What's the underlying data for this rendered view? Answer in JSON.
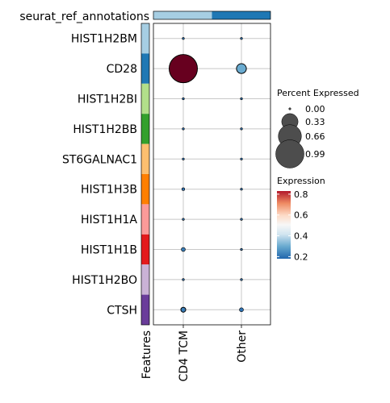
{
  "chart_data": {
    "type": "dotplot",
    "annotation_title": "seurat_ref_annotations",
    "x_axis_title": "Features",
    "groups": [
      "CD4 TCM",
      "Other"
    ],
    "group_colors": [
      "#a6cee3",
      "#1f78b4"
    ],
    "features": [
      "HIST1H2BM",
      "CD28",
      "HIST1H2BI",
      "HIST1H2BB",
      "ST6GALNAC1",
      "HIST1H3B",
      "HIST1H1A",
      "HIST1H1B",
      "HIST1H2BO",
      "CTSH"
    ],
    "feature_colors": [
      "#a6cee3",
      "#1f78b4",
      "#b2df8a",
      "#33a02c",
      "#fdbf6f",
      "#ff7f00",
      "#fb9a99",
      "#e31a1c",
      "#cab2d6",
      "#6a3d9a"
    ],
    "points": [
      {
        "feature": "HIST1H2BM",
        "group": "CD4 TCM",
        "pct": 0.0,
        "expr": 0.2
      },
      {
        "feature": "HIST1H2BM",
        "group": "Other",
        "pct": 0.0,
        "expr": 0.2
      },
      {
        "feature": "CD28",
        "group": "CD4 TCM",
        "pct": 0.99,
        "expr": 0.85
      },
      {
        "feature": "CD28",
        "group": "Other",
        "pct": 0.12,
        "expr": 0.3
      },
      {
        "feature": "HIST1H2BI",
        "group": "CD4 TCM",
        "pct": 0.0,
        "expr": 0.2
      },
      {
        "feature": "HIST1H2BI",
        "group": "Other",
        "pct": 0.0,
        "expr": 0.2
      },
      {
        "feature": "HIST1H2BB",
        "group": "CD4 TCM",
        "pct": 0.0,
        "expr": 0.2
      },
      {
        "feature": "HIST1H2BB",
        "group": "Other",
        "pct": 0.0,
        "expr": 0.2
      },
      {
        "feature": "ST6GALNAC1",
        "group": "CD4 TCM",
        "pct": 0.0,
        "expr": 0.2
      },
      {
        "feature": "ST6GALNAC1",
        "group": "Other",
        "pct": 0.0,
        "expr": 0.2
      },
      {
        "feature": "HIST1H3B",
        "group": "CD4 TCM",
        "pct": 0.01,
        "expr": 0.2
      },
      {
        "feature": "HIST1H3B",
        "group": "Other",
        "pct": 0.005,
        "expr": 0.2
      },
      {
        "feature": "HIST1H1A",
        "group": "CD4 TCM",
        "pct": 0.0,
        "expr": 0.2
      },
      {
        "feature": "HIST1H1A",
        "group": "Other",
        "pct": 0.0,
        "expr": 0.2
      },
      {
        "feature": "HIST1H1B",
        "group": "CD4 TCM",
        "pct": 0.02,
        "expr": 0.22
      },
      {
        "feature": "HIST1H1B",
        "group": "Other",
        "pct": 0.005,
        "expr": 0.2
      },
      {
        "feature": "HIST1H2BO",
        "group": "CD4 TCM",
        "pct": 0.0,
        "expr": 0.2
      },
      {
        "feature": "HIST1H2BO",
        "group": "Other",
        "pct": 0.0,
        "expr": 0.2
      },
      {
        "feature": "CTSH",
        "group": "CD4 TCM",
        "pct": 0.03,
        "expr": 0.22
      },
      {
        "feature": "CTSH",
        "group": "Other",
        "pct": 0.02,
        "expr": 0.2
      }
    ],
    "size_legend": {
      "title": "Percent Expressed",
      "breaks": [
        0.0,
        0.33,
        0.66,
        0.99
      ],
      "labels": [
        "0.00",
        "0.33",
        "0.66",
        "0.99"
      ]
    },
    "color_legend": {
      "title": "Expression",
      "range": [
        0.18,
        0.83
      ],
      "breaks": [
        0.2,
        0.4,
        0.6,
        0.8
      ],
      "labels": [
        "0.2",
        "0.4",
        "0.6",
        "0.8"
      ]
    },
    "grid": true,
    "legend_position": "right"
  }
}
